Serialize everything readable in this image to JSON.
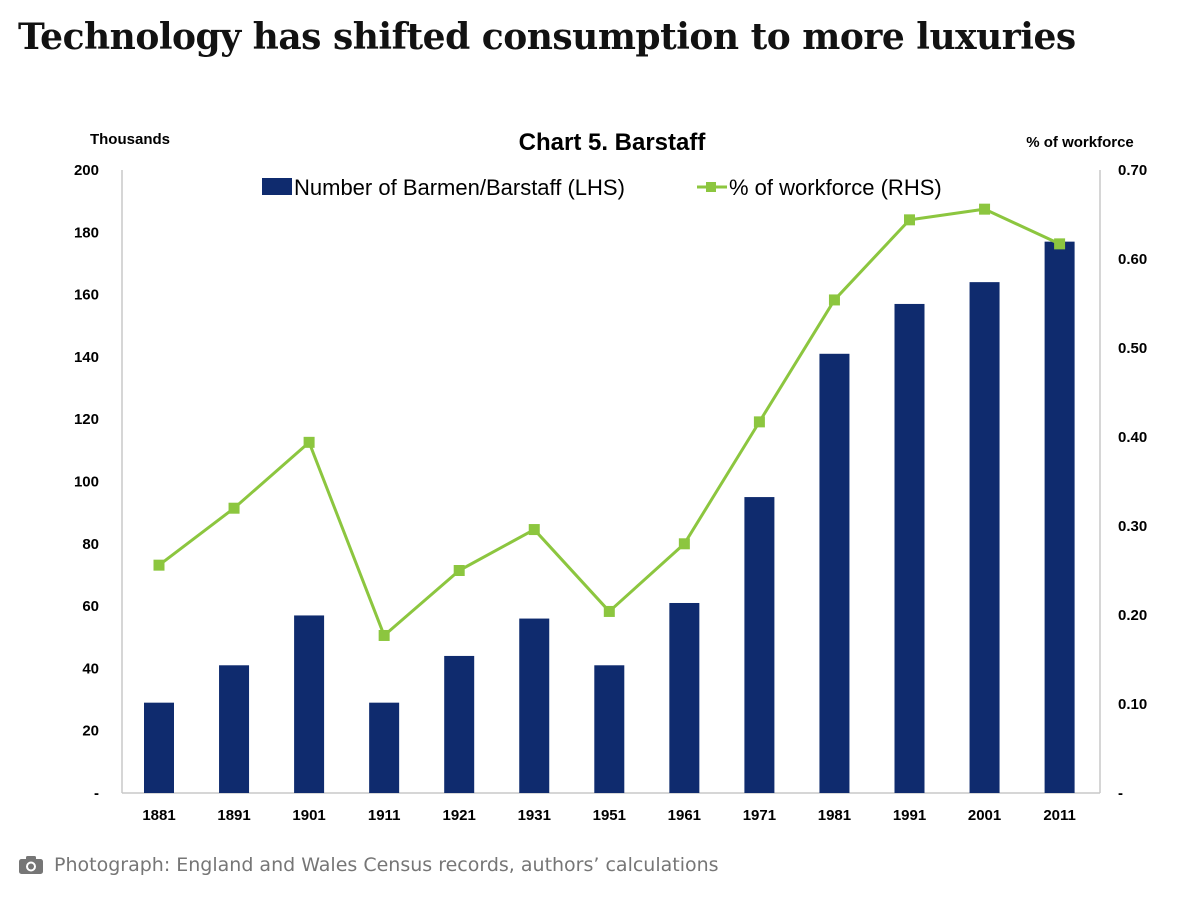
{
  "headline": "Technology has shifted consumption to more luxuries",
  "caption": {
    "icon": "camera-icon",
    "text": "Photograph: England and Wales Census records, authors’ calculations"
  },
  "colors": {
    "bar": "#0f2b6e",
    "line": "#8cc63f",
    "headline": "#121212",
    "caption": "#767676"
  },
  "chart_data": {
    "type": "bar",
    "title": "Chart 5. Barstaff",
    "ylabel_left": "Thousands",
    "ylabel_right": "% of workforce",
    "categories": [
      "1881",
      "1891",
      "1901",
      "1911",
      "1921",
      "1931",
      "1951",
      "1961",
      "1971",
      "1981",
      "1991",
      "2001",
      "2011"
    ],
    "left_axis": {
      "range": [
        0,
        200
      ],
      "ticks": [
        "-",
        "20",
        "40",
        "60",
        "80",
        "100",
        "120",
        "140",
        "160",
        "180",
        "200"
      ],
      "tick_values": [
        0,
        20,
        40,
        60,
        80,
        100,
        120,
        140,
        160,
        180,
        200
      ]
    },
    "right_axis": {
      "range": [
        0,
        0.7
      ],
      "ticks": [
        "-",
        "0.10",
        "0.20",
        "0.30",
        "0.40",
        "0.50",
        "0.60",
        "0.70"
      ],
      "tick_values": [
        0,
        0.1,
        0.2,
        0.3,
        0.4,
        0.5,
        0.6,
        0.7
      ]
    },
    "series": [
      {
        "name": "Number of Barmen/Barstaff (LHS)",
        "type": "bar",
        "axis": "left",
        "values": [
          29,
          41,
          57,
          29,
          44,
          56,
          41,
          61,
          95,
          141,
          157,
          164,
          177
        ]
      },
      {
        "name": "% of workforce (RHS)",
        "type": "line",
        "axis": "right",
        "marker": "square",
        "values": [
          0.256,
          0.32,
          0.394,
          0.177,
          0.25,
          0.296,
          0.204,
          0.28,
          0.417,
          0.554,
          0.644,
          0.656,
          0.617
        ]
      }
    ],
    "legend": "top-center",
    "grid": false
  }
}
